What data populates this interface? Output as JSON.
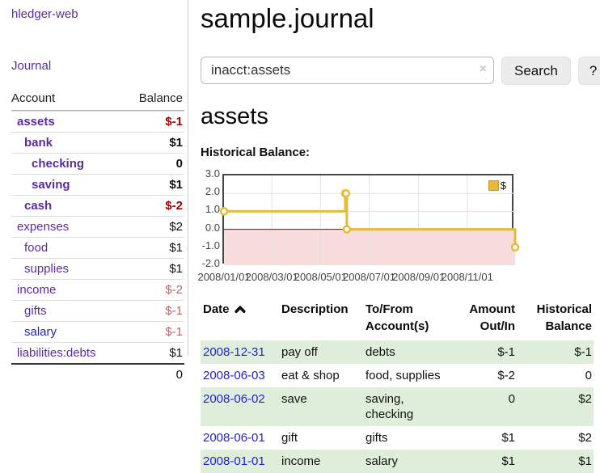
{
  "colors": {
    "link_purple": "#5b2da0",
    "link_blue": "#2323cc",
    "negative_strong": "#a40000",
    "negative_soft": "#b56a6a",
    "row_green": "#dfeeda",
    "chart_line_gold": "#e8ba3a",
    "chart_below_zero_pink": "#f9dcdc",
    "chart_zero_line_red": "#8b0000",
    "chart_grid": "#e3e3e3",
    "chart_border": "#474747"
  },
  "sidebar": {
    "app_title": "hledger-web",
    "nav_journal": "Journal",
    "accounts": {
      "header_account": "Account",
      "header_balance": "Balance",
      "rows": [
        {
          "name": "assets",
          "balance": "$-1"
        },
        {
          "name": "bank",
          "balance": "$1"
        },
        {
          "name": "checking",
          "balance": "0"
        },
        {
          "name": "saving",
          "balance": "$1"
        },
        {
          "name": "cash",
          "balance": "$-2"
        },
        {
          "name": "expenses",
          "balance": "$2"
        },
        {
          "name": "food",
          "balance": "$1"
        },
        {
          "name": "supplies",
          "balance": "$1"
        },
        {
          "name": "income",
          "balance": "$-2"
        },
        {
          "name": "gifts",
          "balance": "$-1"
        },
        {
          "name": "salary",
          "balance": "$-1"
        },
        {
          "name": "liabilities:debts",
          "balance": "$1"
        }
      ],
      "total": "0"
    }
  },
  "main": {
    "title": "sample.journal",
    "search": {
      "value": "inacct:assets",
      "clear_icon": "×",
      "search_button": "Search",
      "help_button": "?"
    },
    "account_heading": "assets",
    "chart_heading": "Historical Balance:"
  },
  "chart_data": {
    "type": "line",
    "line_style": "step",
    "title": "Historical Balance",
    "series": [
      {
        "name": "$",
        "points": [
          [
            "2008-01-01",
            1
          ],
          [
            "2008-06-01",
            2
          ],
          [
            "2008-06-02",
            2
          ],
          [
            "2008-06-03",
            0
          ],
          [
            "2008-12-31",
            -1
          ]
        ]
      }
    ],
    "ylim": [
      -2,
      3
    ],
    "y_tick_step": 1,
    "x_range": [
      "2008-01-01",
      "2008-12-31"
    ],
    "x_ticks": [
      "2008/01/01",
      "2008/03/01",
      "2008/05/01",
      "2008/07/01",
      "2008/09/01",
      "2008/11/01"
    ],
    "legend_position": "top-right",
    "grid": true,
    "below_zero_shaded": true
  },
  "register": {
    "sort_icon": "chevron-up",
    "headers": {
      "date": "Date",
      "description": "Description",
      "accounts": "To/From\nAccount(s)",
      "amount": "Amount\nOut/In",
      "balance": "Historical\nBalance"
    },
    "rows": [
      {
        "date": "2008-12-31",
        "description": "pay off",
        "accounts": "debts",
        "amount": "$-1",
        "balance": "$-1"
      },
      {
        "date": "2008-06-03",
        "description": "eat & shop",
        "accounts": "food, supplies",
        "amount": "$-2",
        "balance": "0"
      },
      {
        "date": "2008-06-02",
        "description": "save",
        "accounts": "saving, checking",
        "amount": "0",
        "balance": "$2"
      },
      {
        "date": "2008-06-01",
        "description": "gift",
        "accounts": "gifts",
        "amount": "$1",
        "balance": "$2"
      },
      {
        "date": "2008-01-01",
        "description": "income",
        "accounts": "salary",
        "amount": "$1",
        "balance": "$1"
      }
    ]
  }
}
